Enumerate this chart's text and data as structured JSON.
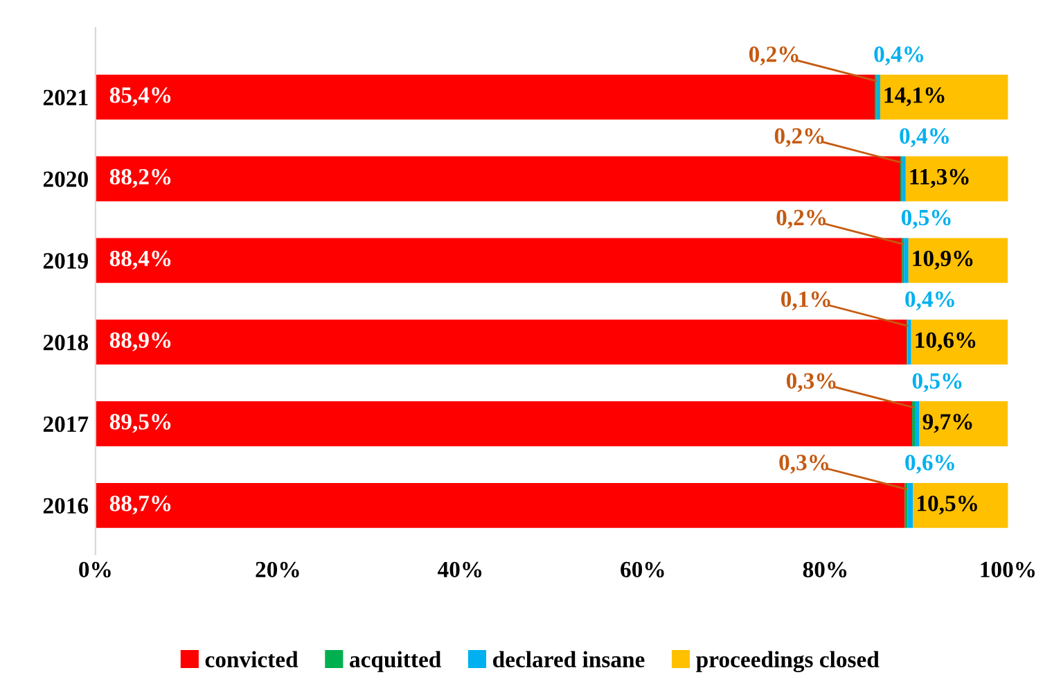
{
  "chart_data": {
    "type": "bar",
    "orientation": "horizontal",
    "stacked": true,
    "categories": [
      "2021",
      "2020",
      "2019",
      "2018",
      "2017",
      "2016"
    ],
    "series": [
      {
        "name": "convicted",
        "color": "#ff0000",
        "values": [
          85.4,
          88.2,
          88.4,
          88.9,
          89.5,
          88.7
        ],
        "value_labels": [
          "85,4%",
          "88,2%",
          "88,4%",
          "88,9%",
          "89,5%",
          "88,7%"
        ]
      },
      {
        "name": "acquitted",
        "color": "#00b050",
        "values": [
          0.2,
          0.2,
          0.2,
          0.1,
          0.3,
          0.3
        ],
        "value_labels": [
          "0,2%",
          "0,2%",
          "0,2%",
          "0,1%",
          "0,3%",
          "0,3%"
        ]
      },
      {
        "name": "declared insane",
        "color": "#00b0f0",
        "values": [
          0.4,
          0.4,
          0.5,
          0.4,
          0.5,
          0.6
        ],
        "value_labels": [
          "0,4%",
          "0,4%",
          "0,5%",
          "0,4%",
          "0,5%",
          "0,6%"
        ]
      },
      {
        "name": "proceedings closed",
        "color": "#ffc000",
        "values": [
          14.1,
          11.3,
          10.9,
          10.6,
          9.7,
          10.5
        ],
        "value_labels": [
          "14,1%",
          "11,3%",
          "10,9%",
          "10,6%",
          "9,7%",
          "10,5%"
        ]
      }
    ],
    "xlim": [
      0,
      100
    ],
    "xticks": [
      {
        "value": 0,
        "label": "0%"
      },
      {
        "value": 20,
        "label": "20%"
      },
      {
        "value": 40,
        "label": "40%"
      },
      {
        "value": 60,
        "label": "60%"
      },
      {
        "value": 80,
        "label": "80%"
      },
      {
        "value": 100,
        "label": "100%"
      }
    ],
    "grid": false,
    "legend": "bottom"
  }
}
